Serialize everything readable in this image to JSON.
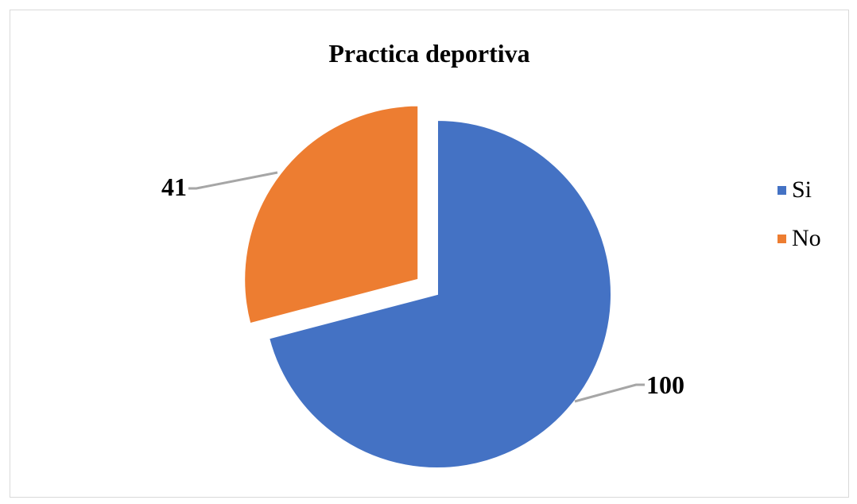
{
  "chart_data": {
    "type": "pie",
    "title": "Practica deportiva",
    "categories": [
      "Si",
      "No"
    ],
    "values": [
      100,
      41
    ],
    "colors": [
      "#4472c4",
      "#ed7d31"
    ],
    "exploded": "No",
    "legend_position": "right"
  }
}
